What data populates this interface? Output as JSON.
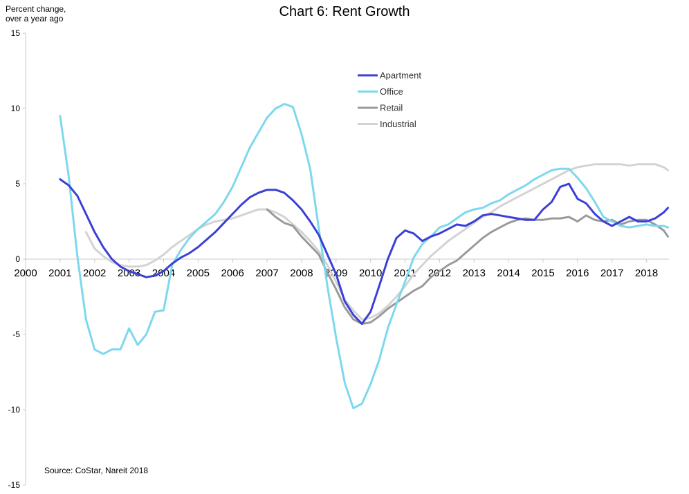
{
  "chart_data": {
    "type": "line",
    "title": "Chart 6: Rent Growth",
    "ylabel": "Percent change,\nover a year ago",
    "source": "Source: CoStar, Nareit 2018",
    "xlim": [
      2000,
      2018.65
    ],
    "ylim": [
      -15,
      15
    ],
    "x_ticks": [
      "2000",
      "2001",
      "2002",
      "2003",
      "2004",
      "2005",
      "2006",
      "2007",
      "2008",
      "2009",
      "2010",
      "2011",
      "2012",
      "2013",
      "2014",
      "2015",
      "2016",
      "2017",
      "2018"
    ],
    "y_ticks": [
      "15",
      "10",
      "5",
      "0",
      "-5",
      "-10",
      "-15"
    ],
    "legend_position": "upper-middle-right",
    "series": [
      {
        "name": "Apartment",
        "color": "#3B3FD8",
        "points": [
          [
            2001.0,
            5.3
          ],
          [
            2001.25,
            4.9
          ],
          [
            2001.5,
            4.2
          ],
          [
            2001.75,
            3.0
          ],
          [
            2002.0,
            1.8
          ],
          [
            2002.25,
            0.8
          ],
          [
            2002.5,
            0.0
          ],
          [
            2002.75,
            -0.5
          ],
          [
            2003.0,
            -0.8
          ],
          [
            2003.25,
            -1.0
          ],
          [
            2003.5,
            -1.2
          ],
          [
            2003.75,
            -1.1
          ],
          [
            2004.0,
            -0.8
          ],
          [
            2004.25,
            -0.3
          ],
          [
            2004.5,
            0.1
          ],
          [
            2004.75,
            0.4
          ],
          [
            2005.0,
            0.8
          ],
          [
            2005.25,
            1.3
          ],
          [
            2005.5,
            1.8
          ],
          [
            2005.75,
            2.4
          ],
          [
            2006.0,
            3.0
          ],
          [
            2006.25,
            3.6
          ],
          [
            2006.5,
            4.1
          ],
          [
            2006.75,
            4.4
          ],
          [
            2007.0,
            4.6
          ],
          [
            2007.25,
            4.6
          ],
          [
            2007.5,
            4.4
          ],
          [
            2007.75,
            3.9
          ],
          [
            2008.0,
            3.3
          ],
          [
            2008.25,
            2.5
          ],
          [
            2008.5,
            1.6
          ],
          [
            2008.75,
            0.3
          ],
          [
            2009.0,
            -1.0
          ],
          [
            2009.25,
            -2.8
          ],
          [
            2009.5,
            -3.7
          ],
          [
            2009.75,
            -4.3
          ],
          [
            2010.0,
            -3.5
          ],
          [
            2010.25,
            -1.8
          ],
          [
            2010.5,
            0.0
          ],
          [
            2010.75,
            1.4
          ],
          [
            2011.0,
            1.9
          ],
          [
            2011.25,
            1.7
          ],
          [
            2011.5,
            1.2
          ],
          [
            2011.75,
            1.5
          ],
          [
            2012.0,
            1.7
          ],
          [
            2012.25,
            2.0
          ],
          [
            2012.5,
            2.3
          ],
          [
            2012.75,
            2.2
          ],
          [
            2013.0,
            2.5
          ],
          [
            2013.25,
            2.9
          ],
          [
            2013.5,
            3.0
          ],
          [
            2013.75,
            2.9
          ],
          [
            2014.0,
            2.8
          ],
          [
            2014.25,
            2.7
          ],
          [
            2014.5,
            2.6
          ],
          [
            2014.75,
            2.6
          ],
          [
            2015.0,
            3.3
          ],
          [
            2015.25,
            3.8
          ],
          [
            2015.5,
            4.8
          ],
          [
            2015.75,
            5.0
          ],
          [
            2016.0,
            4.0
          ],
          [
            2016.25,
            3.7
          ],
          [
            2016.5,
            3.0
          ],
          [
            2016.75,
            2.5
          ],
          [
            2017.0,
            2.2
          ],
          [
            2017.25,
            2.5
          ],
          [
            2017.5,
            2.8
          ],
          [
            2017.75,
            2.5
          ],
          [
            2018.0,
            2.5
          ],
          [
            2018.25,
            2.7
          ],
          [
            2018.5,
            3.1
          ],
          [
            2018.62,
            3.4
          ]
        ]
      },
      {
        "name": "Office",
        "color": "#7DD8EE",
        "points": [
          [
            2001.0,
            9.5
          ],
          [
            2001.25,
            5.5
          ],
          [
            2001.5,
            0.2
          ],
          [
            2001.75,
            -4.0
          ],
          [
            2002.0,
            -6.0
          ],
          [
            2002.25,
            -6.3
          ],
          [
            2002.5,
            -6.0
          ],
          [
            2002.75,
            -6.0
          ],
          [
            2003.0,
            -4.6
          ],
          [
            2003.25,
            -5.7
          ],
          [
            2003.5,
            -5.0
          ],
          [
            2003.75,
            -3.5
          ],
          [
            2004.0,
            -3.4
          ],
          [
            2004.25,
            -0.4
          ],
          [
            2004.5,
            0.6
          ],
          [
            2004.75,
            1.4
          ],
          [
            2005.0,
            2.0
          ],
          [
            2005.25,
            2.5
          ],
          [
            2005.5,
            3.0
          ],
          [
            2005.75,
            3.8
          ],
          [
            2006.0,
            4.8
          ],
          [
            2006.25,
            6.1
          ],
          [
            2006.5,
            7.4
          ],
          [
            2006.75,
            8.4
          ],
          [
            2007.0,
            9.4
          ],
          [
            2007.25,
            10.0
          ],
          [
            2007.5,
            10.3
          ],
          [
            2007.75,
            10.1
          ],
          [
            2008.0,
            8.3
          ],
          [
            2008.25,
            6.0
          ],
          [
            2008.5,
            2.0
          ],
          [
            2008.75,
            -1.8
          ],
          [
            2009.0,
            -5.2
          ],
          [
            2009.25,
            -8.2
          ],
          [
            2009.5,
            -9.9
          ],
          [
            2009.75,
            -9.6
          ],
          [
            2010.0,
            -8.3
          ],
          [
            2010.25,
            -6.7
          ],
          [
            2010.5,
            -4.6
          ],
          [
            2010.75,
            -3.0
          ],
          [
            2011.0,
            -1.5
          ],
          [
            2011.25,
            0.1
          ],
          [
            2011.5,
            1.0
          ],
          [
            2011.75,
            1.5
          ],
          [
            2012.0,
            2.1
          ],
          [
            2012.25,
            2.3
          ],
          [
            2012.5,
            2.7
          ],
          [
            2012.75,
            3.1
          ],
          [
            2013.0,
            3.3
          ],
          [
            2013.25,
            3.4
          ],
          [
            2013.5,
            3.7
          ],
          [
            2013.75,
            3.9
          ],
          [
            2014.0,
            4.3
          ],
          [
            2014.25,
            4.6
          ],
          [
            2014.5,
            4.9
          ],
          [
            2014.75,
            5.3
          ],
          [
            2015.0,
            5.6
          ],
          [
            2015.25,
            5.9
          ],
          [
            2015.5,
            6.0
          ],
          [
            2015.75,
            6.0
          ],
          [
            2016.0,
            5.4
          ],
          [
            2016.25,
            4.7
          ],
          [
            2016.5,
            3.8
          ],
          [
            2016.75,
            2.8
          ],
          [
            2017.0,
            2.5
          ],
          [
            2017.25,
            2.2
          ],
          [
            2017.5,
            2.1
          ],
          [
            2017.75,
            2.2
          ],
          [
            2018.0,
            2.3
          ],
          [
            2018.25,
            2.2
          ],
          [
            2018.5,
            2.2
          ],
          [
            2018.62,
            2.1
          ]
        ]
      },
      {
        "name": "Retail",
        "color": "#9A9A9A",
        "points": [
          [
            2007.0,
            3.3
          ],
          [
            2007.25,
            2.8
          ],
          [
            2007.5,
            2.4
          ],
          [
            2007.75,
            2.2
          ],
          [
            2008.0,
            1.5
          ],
          [
            2008.25,
            0.9
          ],
          [
            2008.5,
            0.3
          ],
          [
            2008.75,
            -0.9
          ],
          [
            2009.0,
            -2.0
          ],
          [
            2009.25,
            -3.2
          ],
          [
            2009.5,
            -4.0
          ],
          [
            2009.75,
            -4.3
          ],
          [
            2010.0,
            -4.2
          ],
          [
            2010.25,
            -3.8
          ],
          [
            2010.5,
            -3.3
          ],
          [
            2010.75,
            -2.9
          ],
          [
            2011.0,
            -2.5
          ],
          [
            2011.25,
            -2.1
          ],
          [
            2011.5,
            -1.8
          ],
          [
            2011.75,
            -1.2
          ],
          [
            2012.0,
            -0.8
          ],
          [
            2012.25,
            -0.4
          ],
          [
            2012.5,
            -0.1
          ],
          [
            2012.75,
            0.4
          ],
          [
            2013.0,
            0.9
          ],
          [
            2013.25,
            1.4
          ],
          [
            2013.5,
            1.8
          ],
          [
            2013.75,
            2.1
          ],
          [
            2014.0,
            2.4
          ],
          [
            2014.25,
            2.6
          ],
          [
            2014.5,
            2.7
          ],
          [
            2014.75,
            2.6
          ],
          [
            2015.0,
            2.6
          ],
          [
            2015.25,
            2.7
          ],
          [
            2015.5,
            2.7
          ],
          [
            2015.75,
            2.8
          ],
          [
            2016.0,
            2.5
          ],
          [
            2016.25,
            2.9
          ],
          [
            2016.5,
            2.6
          ],
          [
            2016.75,
            2.5
          ],
          [
            2017.0,
            2.6
          ],
          [
            2017.25,
            2.3
          ],
          [
            2017.5,
            2.5
          ],
          [
            2017.75,
            2.6
          ],
          [
            2018.0,
            2.6
          ],
          [
            2018.25,
            2.3
          ],
          [
            2018.5,
            1.9
          ],
          [
            2018.62,
            1.5
          ]
        ]
      },
      {
        "name": "Industrial",
        "color": "#D3D3D3",
        "points": [
          [
            2001.75,
            1.8
          ],
          [
            2002.0,
            0.7
          ],
          [
            2002.25,
            0.2
          ],
          [
            2002.5,
            -0.2
          ],
          [
            2002.75,
            -0.4
          ],
          [
            2003.0,
            -0.5
          ],
          [
            2003.25,
            -0.5
          ],
          [
            2003.5,
            -0.4
          ],
          [
            2003.75,
            -0.1
          ],
          [
            2004.0,
            0.3
          ],
          [
            2004.25,
            0.8
          ],
          [
            2004.5,
            1.2
          ],
          [
            2004.75,
            1.6
          ],
          [
            2005.0,
            2.0
          ],
          [
            2005.25,
            2.3
          ],
          [
            2005.5,
            2.5
          ],
          [
            2005.75,
            2.6
          ],
          [
            2006.0,
            2.7
          ],
          [
            2006.25,
            2.9
          ],
          [
            2006.5,
            3.1
          ],
          [
            2006.75,
            3.3
          ],
          [
            2007.0,
            3.3
          ],
          [
            2007.25,
            3.1
          ],
          [
            2007.5,
            2.8
          ],
          [
            2007.75,
            2.3
          ],
          [
            2008.0,
            1.8
          ],
          [
            2008.25,
            1.2
          ],
          [
            2008.5,
            0.5
          ],
          [
            2008.75,
            -0.4
          ],
          [
            2009.0,
            -1.5
          ],
          [
            2009.25,
            -2.7
          ],
          [
            2009.5,
            -3.4
          ],
          [
            2009.75,
            -4.0
          ],
          [
            2010.0,
            -3.9
          ],
          [
            2010.25,
            -3.6
          ],
          [
            2010.5,
            -3.1
          ],
          [
            2010.75,
            -2.5
          ],
          [
            2011.0,
            -1.8
          ],
          [
            2011.25,
            -1.0
          ],
          [
            2011.5,
            -0.4
          ],
          [
            2011.75,
            0.2
          ],
          [
            2012.0,
            0.7
          ],
          [
            2012.25,
            1.2
          ],
          [
            2012.5,
            1.6
          ],
          [
            2012.75,
            2.0
          ],
          [
            2013.0,
            2.4
          ],
          [
            2013.25,
            2.8
          ],
          [
            2013.5,
            3.1
          ],
          [
            2013.75,
            3.5
          ],
          [
            2014.0,
            3.8
          ],
          [
            2014.25,
            4.1
          ],
          [
            2014.5,
            4.4
          ],
          [
            2014.75,
            4.7
          ],
          [
            2015.0,
            5.0
          ],
          [
            2015.25,
            5.3
          ],
          [
            2015.5,
            5.6
          ],
          [
            2015.75,
            5.9
          ],
          [
            2016.0,
            6.1
          ],
          [
            2016.25,
            6.2
          ],
          [
            2016.5,
            6.3
          ],
          [
            2016.75,
            6.3
          ],
          [
            2017.0,
            6.3
          ],
          [
            2017.25,
            6.3
          ],
          [
            2017.5,
            6.2
          ],
          [
            2017.75,
            6.3
          ],
          [
            2018.0,
            6.3
          ],
          [
            2018.25,
            6.3
          ],
          [
            2018.5,
            6.1
          ],
          [
            2018.62,
            5.9
          ]
        ]
      }
    ]
  }
}
